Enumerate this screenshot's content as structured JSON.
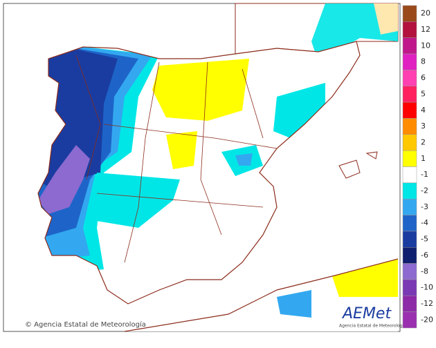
{
  "copyright": "© Agencia Estatal de Meteorología",
  "logo": {
    "name": "AEMet",
    "subtitle": "Agencia Estatal de Meteorología"
  },
  "legend": {
    "items": [
      {
        "label": "20",
        "color": "#9a4a1a"
      },
      {
        "label": "12",
        "color": "#b3123e"
      },
      {
        "label": "10",
        "color": "#c0178a"
      },
      {
        "label": "8",
        "color": "#e020c0"
      },
      {
        "label": "6",
        "color": "#ff40b0"
      },
      {
        "label": "5",
        "color": "#ff2060"
      },
      {
        "label": "4",
        "color": "#ff0000"
      },
      {
        "label": "3",
        "color": "#ff8c00"
      },
      {
        "label": "2",
        "color": "#ffc800"
      },
      {
        "label": "1",
        "color": "#ffff00"
      },
      {
        "label": "-1",
        "color": "#ffffff"
      },
      {
        "label": "-2",
        "color": "#00e6e6"
      },
      {
        "label": "-3",
        "color": "#33a8f0"
      },
      {
        "label": "-4",
        "color": "#1e64c8"
      },
      {
        "label": "-5",
        "color": "#1a3ca0"
      },
      {
        "label": "-6",
        "color": "#0f1e6e"
      },
      {
        "label": "-8",
        "color": "#8c6ad0"
      },
      {
        "label": "-10",
        "color": "#7a3ab4"
      },
      {
        "label": "-12",
        "color": "#8c2aa8"
      },
      {
        "label": "-20",
        "color": "#9a30b0"
      }
    ]
  }
}
